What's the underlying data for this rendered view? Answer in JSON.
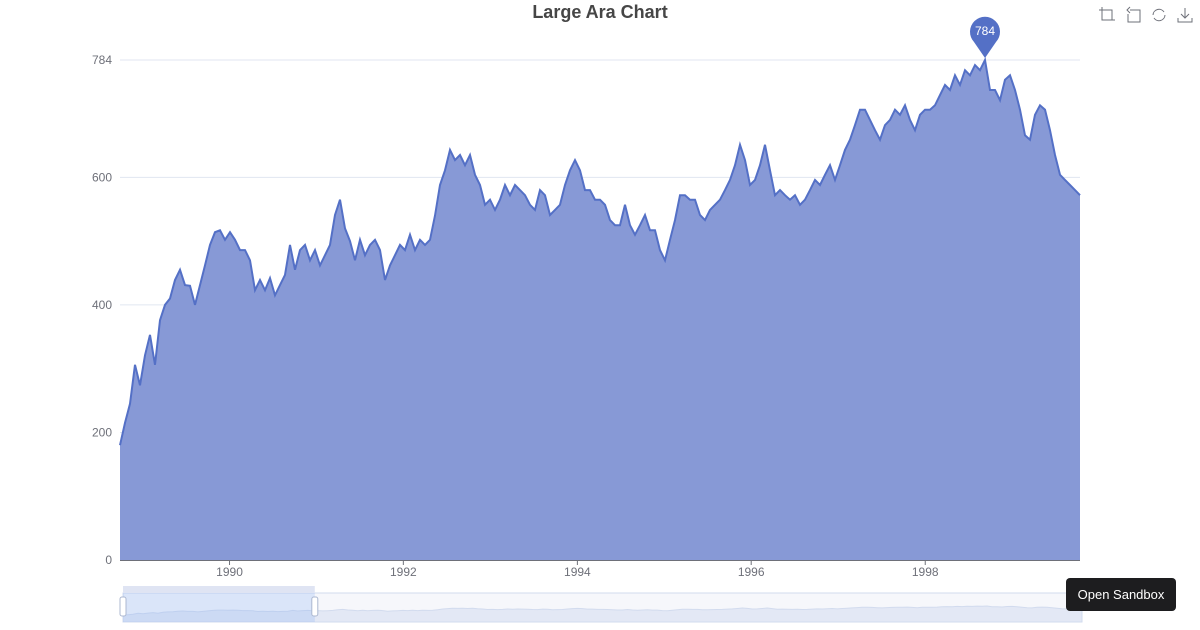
{
  "chart_data": {
    "type": "area",
    "title": "Large Ara Chart",
    "xlabel": "",
    "ylabel": "",
    "x_axis": {
      "type": "time",
      "tick_labels": [
        "1990",
        "1992",
        "1994",
        "1996",
        "1998"
      ]
    },
    "y_axis": {
      "tick_labels": [
        "0",
        "200",
        "400",
        "600",
        "784"
      ],
      "ylim": [
        0,
        784
      ]
    },
    "grid": true,
    "series": [
      {
        "start_date": "1988-09-28",
        "interval_days": 21,
        "values": [
          180,
          215,
          245,
          306,
          274,
          321,
          353,
          306,
          376,
          400,
          410,
          439,
          455,
          431,
          430,
          400,
          431,
          462,
          494,
          514,
          517,
          502,
          514,
          502,
          486,
          486,
          470,
          423,
          439,
          423,
          442,
          415,
          431,
          447,
          494,
          455,
          486,
          494,
          470,
          486,
          462,
          478,
          494,
          541,
          565,
          520,
          500,
          470,
          502,
          478,
          494,
          502,
          486,
          439,
          462,
          478,
          494,
          486,
          510,
          486,
          502,
          494,
          502,
          540,
          588,
          611,
          643,
          627,
          635,
          619,
          635,
          604,
          588,
          557,
          565,
          549,
          565,
          588,
          572,
          588,
          580,
          572,
          557,
          549,
          580,
          572,
          541,
          549,
          557,
          588,
          611,
          627,
          611,
          580,
          580,
          565,
          565,
          557,
          533,
          525,
          525,
          557,
          525,
          510,
          525,
          541,
          517,
          517,
          486,
          470,
          502,
          533,
          572,
          572,
          565,
          565,
          541,
          533,
          549,
          557,
          565,
          580,
          596,
          619,
          651,
          627,
          588,
          596,
          619,
          651,
          611,
          572,
          580,
          572,
          565,
          572,
          557,
          565,
          580,
          596,
          588,
          604,
          619,
          596,
          619,
          643,
          659,
          682,
          706,
          706,
          690,
          674,
          659,
          682,
          690,
          706,
          698,
          713,
          690,
          674,
          698,
          706,
          706,
          713,
          729,
          745,
          737,
          760,
          745,
          768,
          760,
          776,
          768,
          784,
          737,
          737,
          721,
          753,
          760,
          737,
          706,
          666,
          659,
          698,
          713,
          706,
          674,
          635,
          604,
          596,
          588,
          580,
          572
        ]
      }
    ],
    "mark_point": {
      "label": "784",
      "type": "max"
    },
    "colors": {
      "line": "#5470c6",
      "area": "#8799d6",
      "grid": "#e0e6f1",
      "axis": "#6e7079"
    },
    "data_zoom": {
      "start_percent": 0,
      "end_percent": 20
    }
  },
  "toolbox": {
    "icons": [
      "zoom-icon",
      "zoom-reset-icon",
      "restore-icon",
      "save-image-icon"
    ]
  },
  "sandbox_label": "Open Sandbox"
}
